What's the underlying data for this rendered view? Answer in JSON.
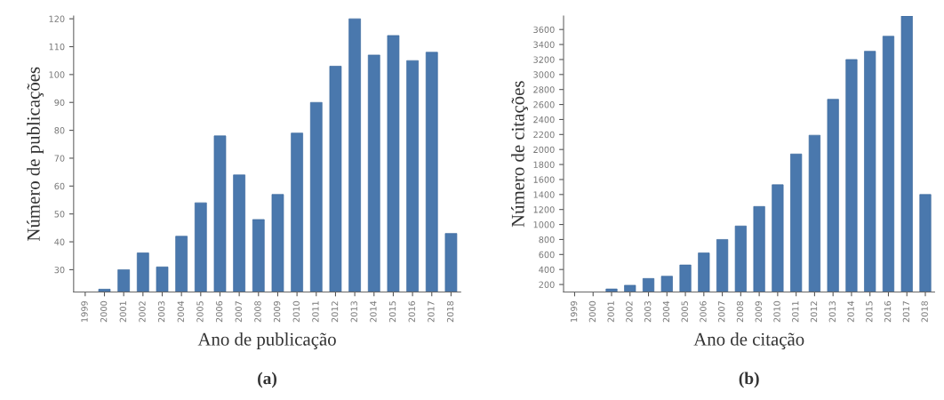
{
  "chart_data": [
    {
      "type": "bar",
      "xlabel": "Ano de publicação",
      "ylabel": "Número de publicações",
      "annotations": [
        "(a)"
      ],
      "categories": [
        "1999",
        "2000",
        "2001",
        "2002",
        "2003",
        "2004",
        "2005",
        "2006",
        "2007",
        "2008",
        "2009",
        "2010",
        "2011",
        "2012",
        "2013",
        "2014",
        "2015",
        "2016",
        "2017",
        "2018"
      ],
      "values": [
        null,
        23,
        30,
        36,
        31,
        42,
        54,
        78,
        64,
        48,
        57,
        79,
        90,
        103,
        120,
        107,
        114,
        105,
        108,
        43
      ],
      "color": "#4a78ad",
      "ylim": [
        22,
        121
      ],
      "yticks": [
        30,
        40,
        50,
        60,
        70,
        80,
        90,
        100,
        110,
        120
      ],
      "grid": false
    },
    {
      "type": "bar",
      "xlabel": "Ano de citação",
      "ylabel": "Número de citações",
      "annotations": [
        "(b)"
      ],
      "categories": [
        "1999",
        "2000",
        "2001",
        "2002",
        "2003",
        "2004",
        "2005",
        "2006",
        "2007",
        "2008",
        "2009",
        "2010",
        "2011",
        "2012",
        "2013",
        "2014",
        "2015",
        "2016",
        "2017",
        "2018"
      ],
      "values": [
        null,
        null,
        140,
        190,
        280,
        310,
        460,
        620,
        800,
        980,
        1240,
        1530,
        1940,
        2190,
        2670,
        3200,
        3310,
        3510,
        3780,
        1400
      ],
      "color": "#4a78ad",
      "ylim": [
        100,
        3780
      ],
      "yticks": [
        200,
        400,
        600,
        800,
        1000,
        1200,
        1400,
        1600,
        1800,
        2000,
        2200,
        2400,
        2600,
        2800,
        3000,
        3200,
        3400,
        3600
      ],
      "grid": false
    }
  ]
}
